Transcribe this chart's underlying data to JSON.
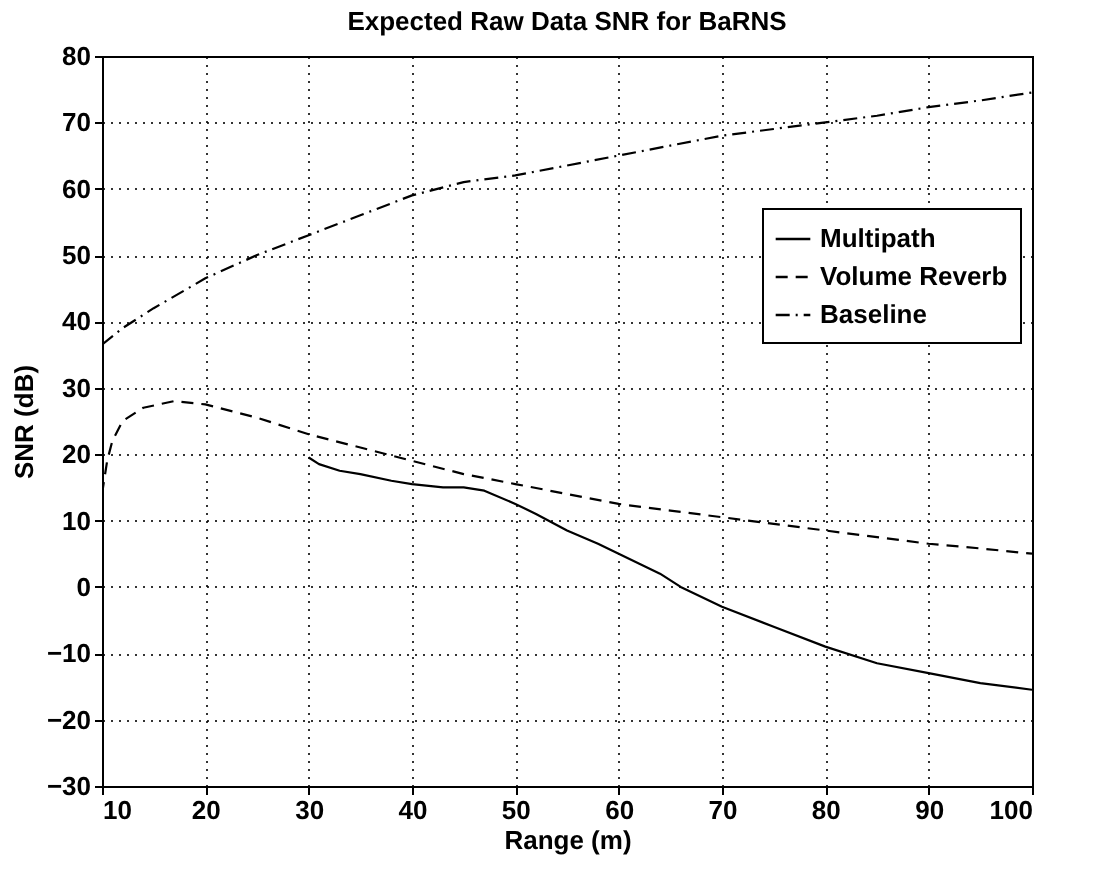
{
  "chart_data": {
    "type": "line",
    "title": "Expected Raw Data SNR for BaRNS",
    "xlabel": "Range (m)",
    "ylabel": "SNR (dB)",
    "xlim": [
      10,
      100
    ],
    "xticks": [
      10,
      20,
      30,
      40,
      50,
      60,
      70,
      80,
      90,
      100
    ],
    "ylim": [
      -30,
      80
    ],
    "yticks": [
      -30,
      -20,
      -10,
      0,
      10,
      20,
      30,
      40,
      50,
      60,
      70,
      80
    ],
    "grid": true,
    "legend": "top right",
    "marker": "none",
    "series": [
      {
        "name": "Multipath",
        "color": "#000000",
        "line_style": "solid",
        "x": [
          30,
          31,
          33,
          35,
          38,
          40,
          43,
          45,
          47,
          50,
          52,
          55,
          58,
          60,
          62,
          64,
          66,
          70,
          75,
          80,
          85,
          90,
          95,
          100
        ],
        "values": [
          19.5,
          18.5,
          17.5,
          17,
          16,
          15.5,
          15,
          15,
          14.5,
          12.5,
          11,
          8.5,
          6.5,
          5,
          3.5,
          2,
          0,
          -3,
          -6,
          -9,
          -11.5,
          -13,
          -14.5,
          -15.5
        ]
      },
      {
        "name": "Volume Reverb",
        "color": "#000000",
        "line_style": "dashed",
        "x": [
          10,
          10.5,
          11,
          12,
          14,
          17,
          20,
          25,
          30,
          35,
          40,
          45,
          50,
          55,
          60,
          65,
          70,
          75,
          80,
          85,
          90,
          95,
          100
        ],
        "values": [
          14,
          19,
          22,
          25,
          27,
          28,
          27.5,
          25.5,
          23,
          21,
          19,
          17,
          15.5,
          14,
          12.5,
          11.5,
          10.5,
          9.5,
          8.5,
          7.5,
          6.5,
          5.8,
          5
        ]
      },
      {
        "name": "Baseline",
        "color": "#000000",
        "line_style": "dashdot",
        "x": [
          10,
          12,
          15,
          20,
          25,
          30,
          35,
          40,
          45,
          50,
          55,
          60,
          65,
          70,
          75,
          80,
          85,
          90,
          95,
          100
        ],
        "values": [
          36.5,
          39,
          42,
          46.5,
          50,
          53,
          56,
          59,
          61,
          62,
          63.5,
          65,
          66.5,
          68,
          69,
          70,
          71,
          72.3,
          73.3,
          74.5
        ]
      }
    ]
  }
}
